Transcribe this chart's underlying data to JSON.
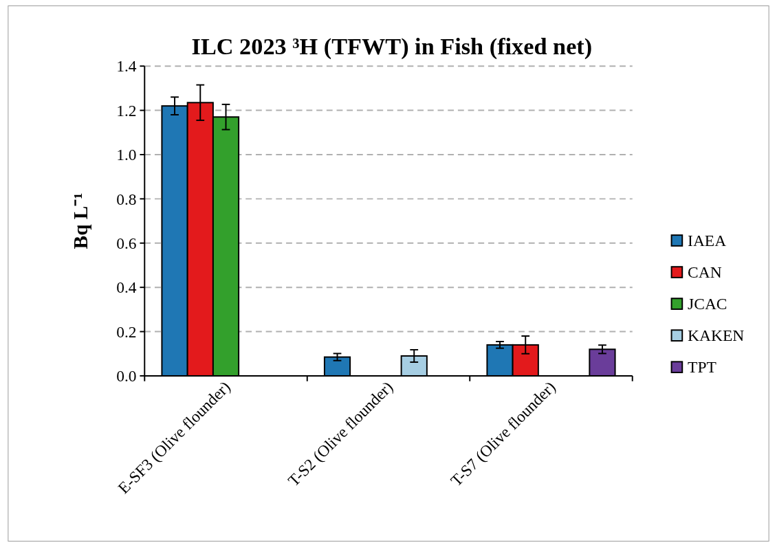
{
  "chart_data": {
    "type": "bar",
    "title": "ILC 2023 ³H (TFWT) in Fish (fixed net)",
    "ylabel": "Bq L⁻¹",
    "categories": [
      "E-SF3 (Olive flounder)",
      "T-S2 (Olive flounder)",
      "T-S7 (Olive flounder)"
    ],
    "series": [
      {
        "name": "IAEA",
        "color": "#1f77b4",
        "values": [
          1.22,
          0.085,
          0.14
        ],
        "errors": [
          0.04,
          0.016,
          0.015
        ]
      },
      {
        "name": "CAN",
        "color": "#e31a1c",
        "values": [
          1.235,
          null,
          0.14
        ],
        "errors": [
          0.08,
          null,
          0.04
        ]
      },
      {
        "name": "JCAC",
        "color": "#33a02c",
        "values": [
          1.17,
          null,
          null
        ],
        "errors": [
          0.057,
          null,
          null
        ]
      },
      {
        "name": "KAKEN",
        "color": "#a6cee3",
        "values": [
          null,
          0.09,
          null
        ],
        "errors": [
          null,
          0.028,
          null
        ]
      },
      {
        "name": "TPT",
        "color": "#6a3d9a",
        "values": [
          null,
          null,
          0.12
        ],
        "errors": [
          null,
          null,
          0.019
        ]
      }
    ],
    "ylim": [
      0,
      1.4
    ],
    "yticks": [
      {
        "value": 0,
        "label": "0.0"
      },
      {
        "value": 0.2,
        "label": "0.2"
      },
      {
        "value": 0.4,
        "label": "0.4"
      },
      {
        "value": 0.6,
        "label": "0.6"
      },
      {
        "value": 0.8,
        "label": "0.8"
      },
      {
        "value": 1,
        "label": "1.0"
      },
      {
        "value": 1.2,
        "label": "1.2"
      },
      {
        "value": 1.4,
        "label": "1.4"
      }
    ],
    "grid": "y",
    "legend": "right"
  }
}
